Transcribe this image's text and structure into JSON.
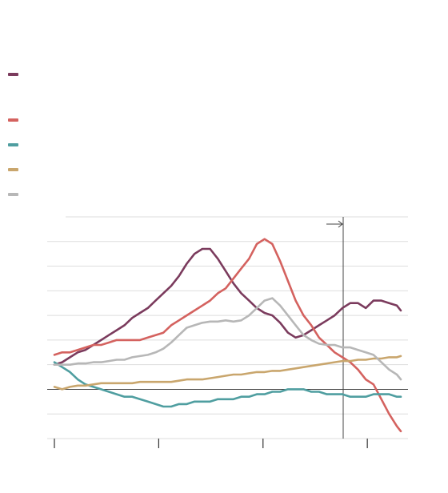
{
  "colors": {
    "background": "#ffffff",
    "grid": "#dddddd",
    "axis": "#444444",
    "tick": "#333333"
  },
  "legend": {
    "items": [
      {
        "label": "",
        "color": "#7b3b5d"
      },
      {
        "label": "",
        "color": "#d4625f"
      },
      {
        "label": "",
        "color": "#4f9ea0"
      },
      {
        "label": "",
        "color": "#c9a66d"
      },
      {
        "label": "",
        "color": "#b7b7b7"
      }
    ]
  },
  "chart_data": {
    "type": "line",
    "title": "",
    "xlabel": "",
    "ylabel": "",
    "xlim": [
      0,
      45.5
    ],
    "ylim": [
      -2,
      7
    ],
    "y_gridlines": [
      -1,
      1,
      2,
      3,
      4,
      5,
      6
    ],
    "zero_line": 0,
    "x_ticks": [
      0,
      13.4,
      26.8,
      40.2
    ],
    "x_tick_labels": [
      "",
      "",
      "",
      ""
    ],
    "vertical_marker": {
      "x": 37.1,
      "label": ""
    },
    "series": [
      {
        "color": "#7b3b5d",
        "values": [
          [
            0,
            1
          ],
          [
            1,
            1.1
          ],
          [
            2,
            1.3
          ],
          [
            3,
            1.5
          ],
          [
            4,
            1.6
          ],
          [
            5,
            1.8
          ],
          [
            6,
            2.0
          ],
          [
            7,
            2.2
          ],
          [
            8,
            2.4
          ],
          [
            9,
            2.6
          ],
          [
            10,
            2.9
          ],
          [
            11,
            3.1
          ],
          [
            12,
            3.3
          ],
          [
            13,
            3.6
          ],
          [
            14,
            3.9
          ],
          [
            15,
            4.2
          ],
          [
            16,
            4.6
          ],
          [
            17,
            5.1
          ],
          [
            18,
            5.5
          ],
          [
            19,
            5.7
          ],
          [
            20,
            5.7
          ],
          [
            21,
            5.3
          ],
          [
            22,
            4.8
          ],
          [
            23,
            4.3
          ],
          [
            24,
            3.9
          ],
          [
            25,
            3.6
          ],
          [
            26,
            3.3
          ],
          [
            27,
            3.1
          ],
          [
            28,
            3.0
          ],
          [
            29,
            2.7
          ],
          [
            30,
            2.3
          ],
          [
            31,
            2.1
          ],
          [
            32,
            2.2
          ],
          [
            33,
            2.4
          ],
          [
            34,
            2.6
          ],
          [
            35,
            2.8
          ],
          [
            36,
            3.0
          ],
          [
            37,
            3.3
          ],
          [
            38,
            3.5
          ],
          [
            39,
            3.5
          ],
          [
            40,
            3.3
          ],
          [
            41,
            3.6
          ],
          [
            42,
            3.6
          ],
          [
            43,
            3.5
          ],
          [
            44,
            3.4
          ],
          [
            44.5,
            3.2
          ]
        ]
      },
      {
        "color": "#d4625f",
        "values": [
          [
            0,
            1.4
          ],
          [
            1,
            1.5
          ],
          [
            2,
            1.5
          ],
          [
            3,
            1.6
          ],
          [
            4,
            1.7
          ],
          [
            5,
            1.8
          ],
          [
            6,
            1.8
          ],
          [
            7,
            1.9
          ],
          [
            8,
            2.0
          ],
          [
            9,
            2.0
          ],
          [
            10,
            2.0
          ],
          [
            11,
            2.0
          ],
          [
            12,
            2.1
          ],
          [
            13,
            2.2
          ],
          [
            14,
            2.3
          ],
          [
            15,
            2.6
          ],
          [
            16,
            2.8
          ],
          [
            17,
            3.0
          ],
          [
            18,
            3.2
          ],
          [
            19,
            3.4
          ],
          [
            20,
            3.6
          ],
          [
            21,
            3.9
          ],
          [
            22,
            4.1
          ],
          [
            23,
            4.5
          ],
          [
            24,
            4.9
          ],
          [
            25,
            5.3
          ],
          [
            26,
            5.9
          ],
          [
            27,
            6.1
          ],
          [
            28,
            5.9
          ],
          [
            29,
            5.2
          ],
          [
            30,
            4.4
          ],
          [
            31,
            3.6
          ],
          [
            32,
            3.0
          ],
          [
            33,
            2.6
          ],
          [
            34,
            2.1
          ],
          [
            35,
            1.8
          ],
          [
            36,
            1.5
          ],
          [
            37,
            1.3
          ],
          [
            38,
            1.1
          ],
          [
            39,
            0.8
          ],
          [
            40,
            0.4
          ],
          [
            41,
            0.2
          ],
          [
            42,
            -0.4
          ],
          [
            43,
            -1.0
          ],
          [
            44,
            -1.5
          ],
          [
            44.5,
            -1.7
          ]
        ]
      },
      {
        "color": "#4f9ea0",
        "values": [
          [
            0,
            1.1
          ],
          [
            1,
            0.9
          ],
          [
            2,
            0.7
          ],
          [
            3,
            0.4
          ],
          [
            4,
            0.2
          ],
          [
            5,
            0.1
          ],
          [
            6,
            0.0
          ],
          [
            7,
            -0.1
          ],
          [
            8,
            -0.2
          ],
          [
            9,
            -0.3
          ],
          [
            10,
            -0.3
          ],
          [
            11,
            -0.4
          ],
          [
            12,
            -0.5
          ],
          [
            13,
            -0.6
          ],
          [
            14,
            -0.7
          ],
          [
            15,
            -0.7
          ],
          [
            16,
            -0.6
          ],
          [
            17,
            -0.6
          ],
          [
            18,
            -0.5
          ],
          [
            19,
            -0.5
          ],
          [
            20,
            -0.5
          ],
          [
            21,
            -0.4
          ],
          [
            22,
            -0.4
          ],
          [
            23,
            -0.4
          ],
          [
            24,
            -0.3
          ],
          [
            25,
            -0.3
          ],
          [
            26,
            -0.2
          ],
          [
            27,
            -0.2
          ],
          [
            28,
            -0.1
          ],
          [
            29,
            -0.1
          ],
          [
            30,
            0.0
          ],
          [
            31,
            0.0
          ],
          [
            32,
            0.0
          ],
          [
            33,
            -0.1
          ],
          [
            34,
            -0.1
          ],
          [
            35,
            -0.2
          ],
          [
            36,
            -0.2
          ],
          [
            37,
            -0.2
          ],
          [
            38,
            -0.3
          ],
          [
            39,
            -0.3
          ],
          [
            40,
            -0.3
          ],
          [
            41,
            -0.2
          ],
          [
            42,
            -0.2
          ],
          [
            43,
            -0.2
          ],
          [
            44,
            -0.3
          ],
          [
            44.5,
            -0.3
          ]
        ]
      },
      {
        "color": "#c9a66d",
        "values": [
          [
            0,
            0.1
          ],
          [
            1,
            0.0
          ],
          [
            2,
            0.1
          ],
          [
            3,
            0.15
          ],
          [
            4,
            0.15
          ],
          [
            5,
            0.2
          ],
          [
            6,
            0.25
          ],
          [
            7,
            0.25
          ],
          [
            8,
            0.25
          ],
          [
            9,
            0.25
          ],
          [
            10,
            0.25
          ],
          [
            11,
            0.3
          ],
          [
            12,
            0.3
          ],
          [
            13,
            0.3
          ],
          [
            14,
            0.3
          ],
          [
            15,
            0.3
          ],
          [
            16,
            0.35
          ],
          [
            17,
            0.4
          ],
          [
            18,
            0.4
          ],
          [
            19,
            0.4
          ],
          [
            20,
            0.45
          ],
          [
            21,
            0.5
          ],
          [
            22,
            0.55
          ],
          [
            23,
            0.6
          ],
          [
            24,
            0.6
          ],
          [
            25,
            0.65
          ],
          [
            26,
            0.7
          ],
          [
            27,
            0.7
          ],
          [
            28,
            0.75
          ],
          [
            29,
            0.75
          ],
          [
            30,
            0.8
          ],
          [
            31,
            0.85
          ],
          [
            32,
            0.9
          ],
          [
            33,
            0.95
          ],
          [
            34,
            1.0
          ],
          [
            35,
            1.05
          ],
          [
            36,
            1.1
          ],
          [
            37,
            1.15
          ],
          [
            38,
            1.15
          ],
          [
            39,
            1.2
          ],
          [
            40,
            1.2
          ],
          [
            41,
            1.25
          ],
          [
            42,
            1.25
          ],
          [
            43,
            1.3
          ],
          [
            44,
            1.3
          ],
          [
            44.5,
            1.35
          ]
        ]
      },
      {
        "color": "#b7b7b7",
        "values": [
          [
            0,
            1.0
          ],
          [
            1,
            1.0
          ],
          [
            2,
            1.0
          ],
          [
            3,
            1.05
          ],
          [
            4,
            1.05
          ],
          [
            5,
            1.1
          ],
          [
            6,
            1.1
          ],
          [
            7,
            1.15
          ],
          [
            8,
            1.2
          ],
          [
            9,
            1.2
          ],
          [
            10,
            1.3
          ],
          [
            11,
            1.35
          ],
          [
            12,
            1.4
          ],
          [
            13,
            1.5
          ],
          [
            14,
            1.65
          ],
          [
            15,
            1.9
          ],
          [
            16,
            2.2
          ],
          [
            17,
            2.5
          ],
          [
            18,
            2.6
          ],
          [
            19,
            2.7
          ],
          [
            20,
            2.75
          ],
          [
            21,
            2.75
          ],
          [
            22,
            2.8
          ],
          [
            23,
            2.75
          ],
          [
            24,
            2.8
          ],
          [
            25,
            3.0
          ],
          [
            26,
            3.3
          ],
          [
            27,
            3.6
          ],
          [
            28,
            3.7
          ],
          [
            29,
            3.4
          ],
          [
            30,
            3.0
          ],
          [
            31,
            2.6
          ],
          [
            32,
            2.2
          ],
          [
            33,
            2.0
          ],
          [
            34,
            1.85
          ],
          [
            35,
            1.8
          ],
          [
            36,
            1.8
          ],
          [
            37,
            1.7
          ],
          [
            38,
            1.7
          ],
          [
            39,
            1.6
          ],
          [
            40,
            1.5
          ],
          [
            41,
            1.4
          ],
          [
            42,
            1.1
          ],
          [
            43,
            0.8
          ],
          [
            44,
            0.6
          ],
          [
            44.5,
            0.4
          ]
        ]
      }
    ]
  }
}
